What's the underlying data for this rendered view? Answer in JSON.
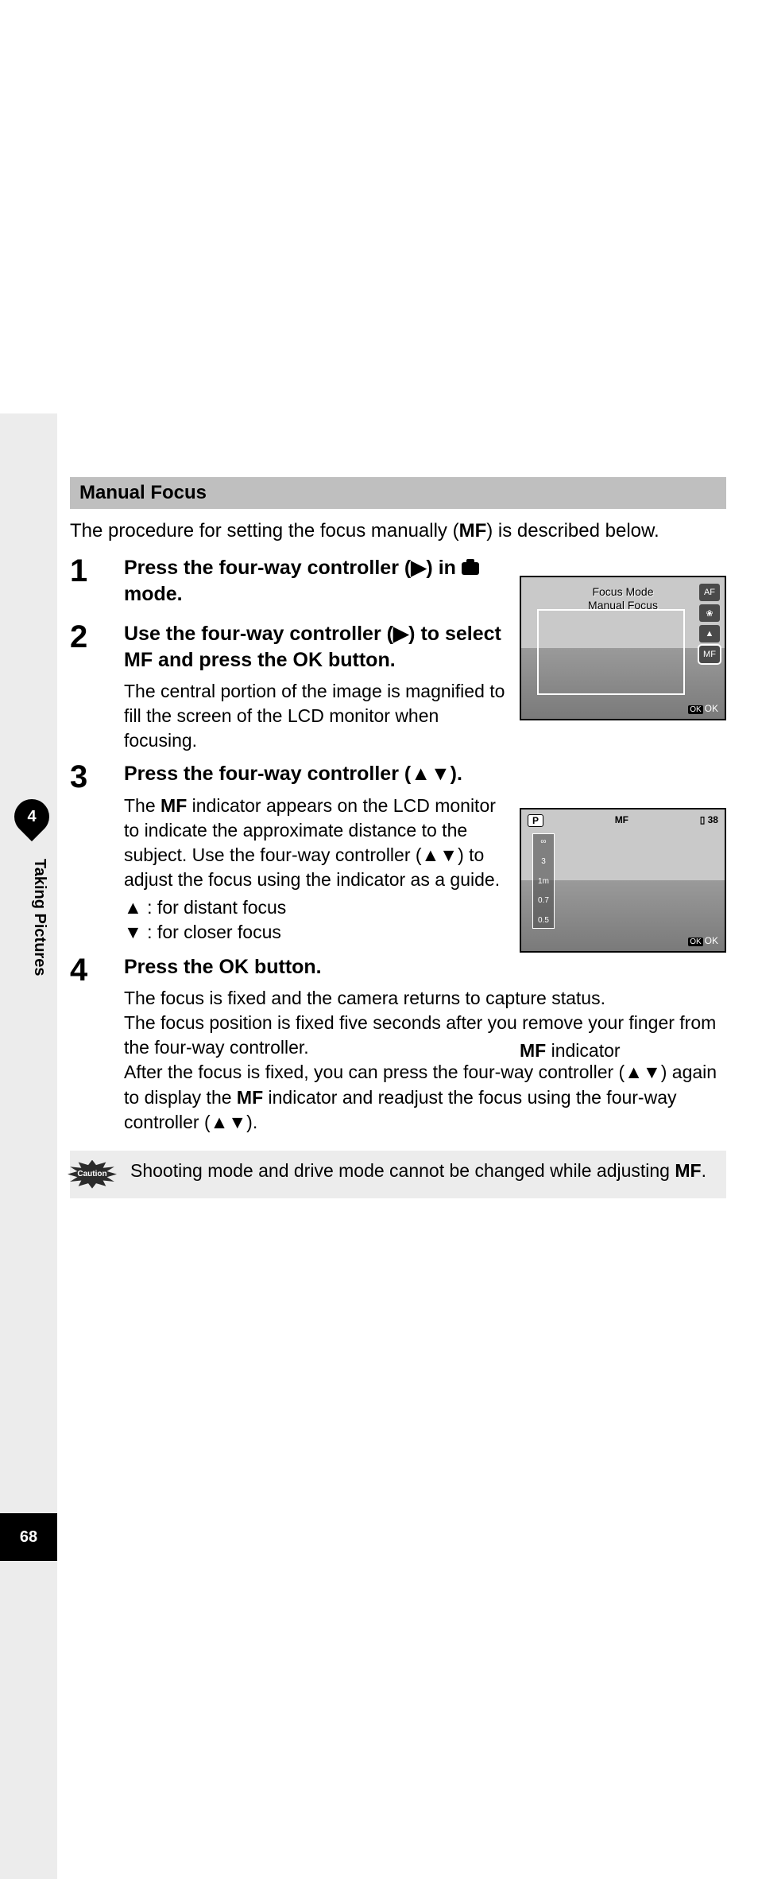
{
  "sidebar": {
    "chapter_number": "4",
    "chapter_title": "Taking Pictures",
    "page_number": "68"
  },
  "section": {
    "title": "Manual Focus",
    "intro_pre": "The procedure for setting the focus manually (",
    "intro_mf": "MF",
    "intro_post": ") is described below."
  },
  "steps": [
    {
      "num": "1",
      "title_pre": "Press the four-way controller (▶) in ",
      "title_post": " mode."
    },
    {
      "num": "2",
      "title": "Use the four-way controller (▶) to select MF and press the OK button.",
      "desc": "The central portion of the image is magnified to fill the screen of the LCD monitor when focusing."
    },
    {
      "num": "3",
      "title": "Press the four-way controller (▲▼).",
      "desc_pre": "The ",
      "desc_mf": "MF",
      "desc_post": " indicator appears on the LCD monitor to indicate the approximate distance to the subject. Use the four-way controller (▲▼) to adjust the focus using the indicator as a guide.",
      "up": "▲  : for distant focus",
      "down": "▼  : for closer focus"
    },
    {
      "num": "4",
      "title": "Press the OK button.",
      "desc1": "The focus is fixed and the camera returns to capture status.",
      "desc2": "The focus position is fixed five seconds after you remove your finger from the four-way controller.",
      "desc3_pre": "After the focus is fixed, you can press the four-way controller (▲▼) again to display the ",
      "desc3_mf": "MF",
      "desc3_post": " indicator and readjust the focus using the four-way controller (▲▼)."
    }
  ],
  "lcd1": {
    "title_line1": "Focus Mode",
    "title_line2": "Manual Focus",
    "icons": [
      "AF",
      "❀",
      "▲",
      "MF"
    ],
    "ok": "OK"
  },
  "lcd2": {
    "mode": "P",
    "mf": "MF",
    "count": "38",
    "scale": [
      "∞",
      "3",
      "1m",
      "0.7",
      "0.5"
    ],
    "ok": "OK",
    "caption_mf": "MF",
    "caption_post": " indicator"
  },
  "caution": {
    "label": "Caution",
    "text_pre": "Shooting mode and drive mode cannot be changed while adjusting ",
    "text_mf": "MF",
    "text_post": "."
  }
}
